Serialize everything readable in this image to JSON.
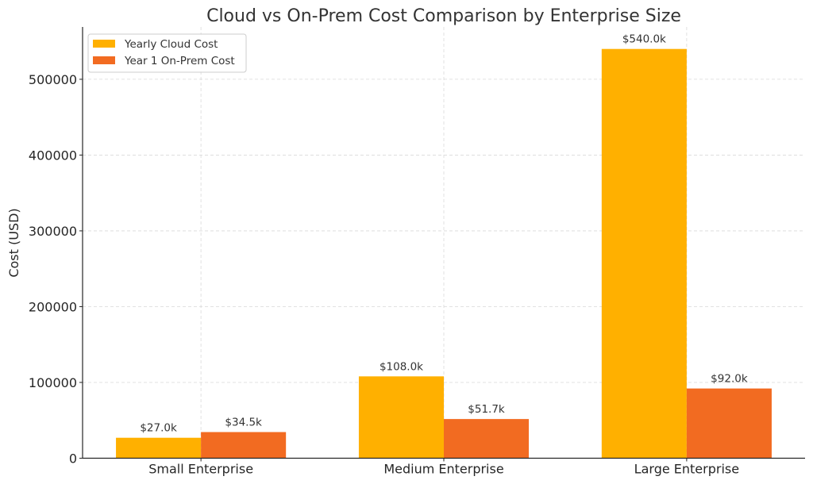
{
  "chart_data": {
    "type": "bar",
    "title": "Cloud vs On-Prem Cost Comparison by Enterprise Size",
    "xlabel": "",
    "ylabel": "Cost (USD)",
    "categories": [
      "Small Enterprise",
      "Medium Enterprise",
      "Large Enterprise"
    ],
    "series": [
      {
        "name": "Yearly Cloud Cost",
        "color": "#FFB000",
        "values": [
          27000,
          108000,
          540000
        ],
        "labels": [
          "$27.0k",
          "$108.0k",
          "$540.0k"
        ]
      },
      {
        "name": "Year 1 On-Prem Cost",
        "color": "#F26B21",
        "values": [
          34500,
          51700,
          92000
        ],
        "labels": [
          "$34.5k",
          "$51.7k",
          "$92.0k"
        ]
      }
    ],
    "ylim": [
      0,
      569000
    ],
    "yticks": [
      0,
      100000,
      200000,
      300000,
      400000,
      500000
    ],
    "ytick_labels": [
      "0",
      "100000",
      "200000",
      "300000",
      "400000",
      "500000"
    ],
    "grid": true,
    "grid_style": "dashed",
    "legend_position": "top-left"
  }
}
